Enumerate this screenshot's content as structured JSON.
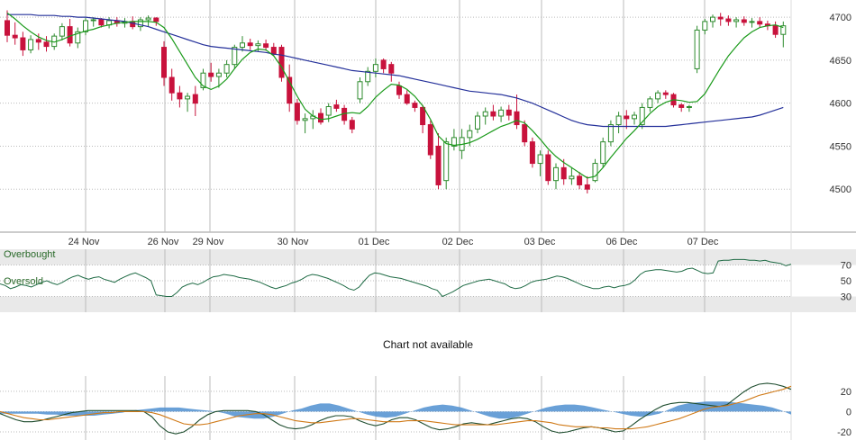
{
  "colors": {
    "up_candle": "#2e8b2e",
    "down_candle": "#c8123c",
    "short_ma": "#1a9a1a",
    "long_ma": "#24309a",
    "rsi_line": "#1f6b45",
    "macd_line": "#1f4d2f",
    "signal_line": "#d07a18",
    "histogram": "#4f8fd0",
    "grid": "#bbbbbb",
    "band_fill": "#e9e9e9"
  },
  "panels": {
    "rsi": {
      "overbought_label": "Overbought",
      "oversold_label": "Oversold"
    },
    "middle": {
      "message": "Chart not available"
    }
  },
  "chart_data": [
    {
      "type": "candlestick",
      "x_labels": [
        "24 Nov",
        "26 Nov",
        "29 Nov",
        "30 Nov",
        "01 Dec",
        "02 Dec",
        "03 Dec",
        "06 Dec",
        "07 Dec"
      ],
      "ylim": [
        4450,
        4720
      ],
      "y_ticks": [
        4500,
        4550,
        4600,
        4650,
        4700
      ],
      "grid": true,
      "candles": [
        [
          4696,
          4708,
          4671,
          4679
        ],
        [
          4679,
          4694,
          4668,
          4676
        ],
        [
          4676,
          4683,
          4655,
          4662
        ],
        [
          4662,
          4679,
          4658,
          4674
        ],
        [
          4674,
          4681,
          4662,
          4671
        ],
        [
          4671,
          4678,
          4660,
          4666
        ],
        [
          4666,
          4681,
          4662,
          4678
        ],
        [
          4678,
          4693,
          4673,
          4689
        ],
        [
          4689,
          4698,
          4666,
          4670
        ],
        [
          4670,
          4688,
          4664,
          4683
        ],
        [
          4683,
          4699,
          4679,
          4696
        ],
        [
          4696,
          4700,
          4689,
          4697
        ],
        [
          4697,
          4699,
          4688,
          4691
        ],
        [
          4691,
          4700,
          4687,
          4696
        ],
        [
          4696,
          4700,
          4689,
          4693
        ],
        [
          4693,
          4699,
          4688,
          4695
        ],
        [
          4695,
          4701,
          4686,
          4689
        ],
        [
          4689,
          4700,
          4684,
          4697
        ],
        [
          4697,
          4702,
          4689,
          4699
        ],
        [
          4699,
          4700,
          4690,
          4695
        ],
        [
          4665,
          4672,
          4620,
          4630
        ],
        [
          4630,
          4640,
          4603,
          4612
        ],
        [
          4612,
          4620,
          4595,
          4605
        ],
        [
          4605,
          4612,
          4590,
          4608
        ],
        [
          4610,
          4620,
          4585,
          4600
        ],
        [
          4618,
          4640,
          4615,
          4635
        ],
        [
          4635,
          4647,
          4625,
          4631
        ],
        [
          4631,
          4640,
          4618,
          4635
        ],
        [
          4635,
          4650,
          4630,
          4645
        ],
        [
          4645,
          4668,
          4640,
          4665
        ],
        [
          4665,
          4678,
          4660,
          4670
        ],
        [
          4670,
          4675,
          4662,
          4667
        ],
        [
          4667,
          4673,
          4660,
          4669
        ],
        [
          4669,
          4674,
          4661,
          4665
        ],
        [
          4665,
          4670,
          4655,
          4657
        ],
        [
          4665,
          4668,
          4625,
          4630
        ],
        [
          4630,
          4645,
          4590,
          4600
        ],
        [
          4600,
          4605,
          4575,
          4580
        ],
        [
          4580,
          4588,
          4565,
          4582
        ],
        [
          4582,
          4592,
          4570,
          4585
        ],
        [
          4588,
          4594,
          4575,
          4578
        ],
        [
          4586,
          4600,
          4578,
          4596
        ],
        [
          4598,
          4604,
          4590,
          4594
        ],
        [
          4594,
          4598,
          4575,
          4580
        ],
        [
          4580,
          4584,
          4565,
          4570
        ],
        [
          4605,
          4630,
          4600,
          4625
        ],
        [
          4625,
          4642,
          4620,
          4637
        ],
        [
          4637,
          4652,
          4630,
          4645
        ],
        [
          4650,
          4652,
          4635,
          4640
        ],
        [
          4645,
          4648,
          4625,
          4635
        ],
        [
          4620,
          4625,
          4605,
          4610
        ],
        [
          4610,
          4615,
          4598,
          4600
        ],
        [
          4600,
          4603,
          4590,
          4595
        ],
        [
          4595,
          4598,
          4565,
          4575
        ],
        [
          4575,
          4580,
          4535,
          4540
        ],
        [
          4550,
          4565,
          4500,
          4505
        ],
        [
          4510,
          4560,
          4500,
          4555
        ],
        [
          4550,
          4570,
          4545,
          4560
        ],
        [
          4545,
          4570,
          4535,
          4560
        ],
        [
          4560,
          4575,
          4550,
          4568
        ],
        [
          4570,
          4590,
          4565,
          4585
        ],
        [
          4585,
          4595,
          4575,
          4590
        ],
        [
          4590,
          4598,
          4580,
          4585
        ],
        [
          4585,
          4596,
          4578,
          4592
        ],
        [
          4592,
          4598,
          4580,
          4586
        ],
        [
          4590,
          4610,
          4570,
          4575
        ],
        [
          4575,
          4580,
          4550,
          4555
        ],
        [
          4555,
          4560,
          4525,
          4530
        ],
        [
          4530,
          4545,
          4515,
          4540
        ],
        [
          4540,
          4545,
          4505,
          4510
        ],
        [
          4510,
          4530,
          4500,
          4525
        ],
        [
          4525,
          4535,
          4505,
          4512
        ],
        [
          4512,
          4525,
          4505,
          4515
        ],
        [
          4515,
          4520,
          4500,
          4505
        ],
        [
          4505,
          4515,
          4495,
          4500
        ],
        [
          4510,
          4535,
          4508,
          4530
        ],
        [
          4530,
          4560,
          4525,
          4555
        ],
        [
          4555,
          4580,
          4550,
          4575
        ],
        [
          4575,
          4590,
          4565,
          4585
        ],
        [
          4585,
          4592,
          4570,
          4582
        ],
        [
          4582,
          4590,
          4575,
          4586
        ],
        [
          4575,
          4600,
          4570,
          4595
        ],
        [
          4595,
          4608,
          4590,
          4605
        ],
        [
          4605,
          4615,
          4600,
          4612
        ],
        [
          4612,
          4615,
          4605,
          4610
        ],
        [
          4610,
          4612,
          4595,
          4598
        ],
        [
          4598,
          4600,
          4590,
          4595
        ],
        [
          4595,
          4598,
          4590,
          4596
        ],
        [
          4640,
          4690,
          4635,
          4685
        ],
        [
          4685,
          4698,
          4680,
          4695
        ],
        [
          4695,
          4703,
          4688,
          4700
        ],
        [
          4700,
          4705,
          4690,
          4698
        ],
        [
          4698,
          4702,
          4690,
          4695
        ],
        [
          4695,
          4700,
          4688,
          4697
        ],
        [
          4697,
          4701,
          4690,
          4694
        ],
        [
          4694,
          4699,
          4688,
          4695
        ],
        [
          4695,
          4700,
          4688,
          4692
        ],
        [
          4692,
          4696,
          4685,
          4690
        ],
        [
          4690,
          4695,
          4676,
          4680
        ],
        [
          4680,
          4695,
          4665,
          4690
        ]
      ],
      "short_ma": [
        4705,
        4698,
        4690,
        4683,
        4677,
        4673,
        4671,
        4674,
        4678,
        4681,
        4684,
        4686,
        4689,
        4691,
        4693,
        4694,
        4695,
        4695,
        4695,
        4694,
        4688,
        4675,
        4660,
        4645,
        4630,
        4620,
        4616,
        4620,
        4628,
        4640,
        4651,
        4659,
        4663,
        4662,
        4655,
        4642,
        4625,
        4608,
        4593,
        4585,
        4581,
        4582,
        4585,
        4588,
        4589,
        4588,
        4596,
        4607,
        4615,
        4622,
        4621,
        4616,
        4608,
        4597,
        4581,
        4562,
        4553,
        4551,
        4552,
        4554,
        4558,
        4563,
        4568,
        4573,
        4576,
        4580,
        4577,
        4568,
        4558,
        4547,
        4538,
        4531,
        4525,
        4519,
        4513,
        4515,
        4525,
        4537,
        4548,
        4559,
        4568,
        4578,
        4588,
        4596,
        4601,
        4604,
        4603,
        4601,
        4602,
        4611,
        4626,
        4641,
        4655,
        4666,
        4676,
        4683,
        4688,
        4690,
        4691,
        4688
      ],
      "long_ma": [
        4703,
        4703,
        4703,
        4703,
        4702,
        4702,
        4702,
        4701,
        4701,
        4700,
        4700,
        4699,
        4698,
        4697,
        4696,
        4695,
        4693,
        4691,
        4689,
        4686,
        4683,
        4680,
        4677,
        4674,
        4671,
        4668,
        4666,
        4665,
        4664,
        4663,
        4662,
        4661,
        4660,
        4659,
        4657,
        4656,
        4654,
        4652,
        4650,
        4648,
        4646,
        4644,
        4642,
        4640,
        4638,
        4637,
        4636,
        4635,
        4634,
        4633,
        4632,
        4630,
        4628,
        4626,
        4624,
        4622,
        4620,
        4618,
        4616,
        4614,
        4613,
        4612,
        4611,
        4610,
        4608,
        4606,
        4603,
        4600,
        4596,
        4592,
        4588,
        4584,
        4580,
        4577,
        4575,
        4574,
        4573,
        4573,
        4573,
        4573,
        4573,
        4573,
        4573,
        4573,
        4573,
        4574,
        4575,
        4576,
        4577,
        4578,
        4579,
        4580,
        4581,
        4582,
        4583,
        4584,
        4586,
        4589,
        4592,
        4595
      ]
    },
    {
      "type": "line",
      "y_ticks": [
        30,
        50,
        70
      ],
      "ylim": [
        10,
        90
      ],
      "bands": {
        "overbought": 70,
        "oversold": 30
      },
      "series": [
        {
          "values": [
            46,
            44,
            40,
            42,
            45,
            44,
            42,
            45,
            48,
            50,
            47,
            45,
            48,
            52,
            55,
            57,
            54,
            52,
            54,
            55,
            52,
            50,
            48,
            52,
            55,
            58,
            60,
            57,
            54,
            50,
            32,
            31,
            30,
            30,
            35,
            42,
            45,
            47,
            45,
            48,
            52,
            55,
            56,
            58,
            57,
            56,
            54,
            53,
            52,
            50,
            48,
            45,
            42,
            40,
            42,
            44,
            47,
            49,
            52,
            56,
            58,
            57,
            55,
            53,
            50,
            47,
            44,
            40,
            38,
            42,
            50,
            57,
            60,
            59,
            57,
            55,
            54,
            53,
            51,
            49,
            47,
            45,
            43,
            40,
            38,
            30,
            33,
            36,
            40,
            44,
            46,
            48,
            50,
            51,
            52,
            50,
            48,
            46,
            42,
            40,
            41,
            44,
            48,
            50,
            51,
            52,
            54,
            56,
            55,
            53,
            50,
            47,
            44,
            42,
            40,
            40,
            42,
            43,
            41,
            43,
            44,
            46,
            51,
            58,
            62,
            63,
            64,
            64,
            63,
            62,
            61,
            62,
            65,
            66,
            63,
            60,
            59,
            60,
            75,
            76,
            76,
            77,
            77,
            77,
            76,
            76,
            75,
            76,
            74,
            73,
            72,
            69,
            71
          ]
        }
      ]
    },
    {
      "type": "area",
      "y_ticks": [
        -20,
        0,
        20
      ],
      "ylim": [
        -28,
        35
      ],
      "series": [
        {
          "values": [
            -2,
            -2,
            -2,
            -2,
            -2,
            -3,
            -3,
            -4,
            -4,
            -4,
            -4,
            -3,
            -2,
            -1,
            1,
            2,
            3,
            4,
            4,
            4,
            3,
            2,
            1,
            0,
            -2,
            -5,
            -6,
            -7,
            -7,
            -5,
            -2,
            1,
            3,
            6,
            8,
            8,
            6,
            3,
            0,
            -3,
            -5,
            -6,
            -5,
            -2,
            1,
            4,
            6,
            7,
            6,
            4,
            1,
            -2,
            -5,
            -7,
            -7,
            -5,
            -2,
            1,
            4,
            6,
            7,
            7,
            6,
            4,
            2,
            0,
            -2,
            -4,
            -5,
            -4,
            -2,
            2,
            6,
            8,
            9,
            10,
            10,
            10,
            9,
            8,
            7,
            6,
            4,
            1,
            -3
          ]
        },
        {
          "values": [
            -2,
            -5,
            -8,
            -10,
            -10,
            -9,
            -7,
            -5,
            -3,
            -1,
            0,
            1,
            1,
            1,
            1,
            1,
            1,
            1,
            0,
            -5,
            -14,
            -20,
            -22,
            -20,
            -15,
            -8,
            -3,
            0,
            1,
            1,
            1,
            1,
            0,
            -3,
            -8,
            -13,
            -16,
            -17,
            -16,
            -13,
            -9,
            -6,
            -4,
            -4,
            -5,
            -9,
            -12,
            -14,
            -12,
            -8,
            -6,
            -6,
            -8,
            -12,
            -16,
            -18,
            -17,
            -15,
            -12,
            -11,
            -12,
            -13,
            -11,
            -9,
            -7,
            -6,
            -7,
            -10,
            -15,
            -19,
            -21,
            -20,
            -18,
            -16,
            -15,
            -16,
            -18,
            -20,
            -19,
            -14,
            -8,
            -3,
            2,
            6,
            8,
            9,
            9,
            8,
            7,
            6,
            5,
            7,
            13,
            19,
            24,
            27,
            28,
            27,
            25,
            22
          ]
        },
        {
          "values": [
            0,
            -2,
            -4,
            -6,
            -7,
            -8,
            -8,
            -7,
            -6,
            -5,
            -4,
            -3,
            -2,
            -1,
            -1,
            0,
            0,
            0,
            0,
            -1,
            -3,
            -6,
            -9,
            -12,
            -13,
            -13,
            -12,
            -10,
            -8,
            -6,
            -4,
            -3,
            -2,
            -2,
            -3,
            -5,
            -7,
            -9,
            -10,
            -11,
            -11,
            -10,
            -9,
            -8,
            -7,
            -7,
            -8,
            -9,
            -10,
            -10,
            -10,
            -9,
            -9,
            -9,
            -10,
            -11,
            -12,
            -13,
            -13,
            -13,
            -13,
            -13,
            -13,
            -12,
            -11,
            -10,
            -9,
            -9,
            -10,
            -11,
            -13,
            -14,
            -15,
            -15,
            -15,
            -16,
            -16,
            -17,
            -17,
            -17,
            -16,
            -15,
            -13,
            -11,
            -9,
            -7,
            -4,
            -1,
            2,
            4,
            5,
            6,
            8,
            10,
            13,
            16,
            18,
            20,
            22,
            25
          ]
        }
      ]
    }
  ]
}
